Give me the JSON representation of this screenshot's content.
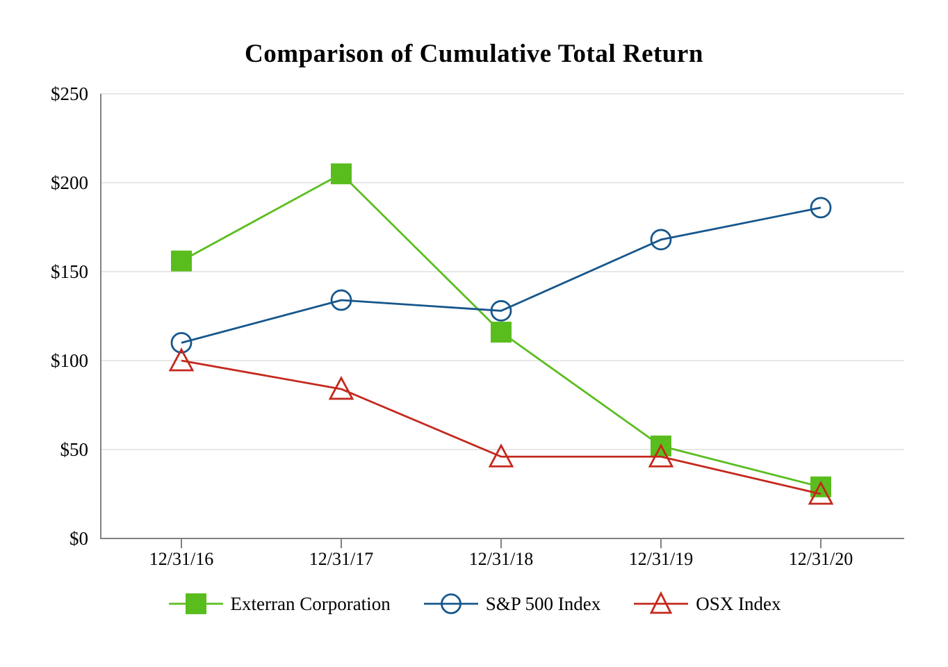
{
  "page": {
    "background": "#ffffff"
  },
  "colors": {
    "axis": "#808080",
    "grid": "#e7e7e7",
    "text": "#000000"
  },
  "chart_data": {
    "type": "line",
    "title": "Comparison of Cumulative Total Return",
    "categories": [
      "12/31/16",
      "12/31/17",
      "12/31/18",
      "12/31/19",
      "12/31/20"
    ],
    "series": [
      {
        "name": "Exterran Corporation",
        "marker": "square",
        "color": "#5abd1e",
        "values": [
          156,
          205,
          116,
          52,
          29
        ]
      },
      {
        "name": "S&P 500 Index",
        "marker": "circle",
        "color": "#16568c",
        "values": [
          110,
          134,
          128,
          168,
          186
        ]
      },
      {
        "name": "OSX Index",
        "marker": "triangle",
        "color": "#c4281c",
        "values": [
          100,
          84,
          46,
          46,
          25
        ]
      }
    ],
    "xlabel": "",
    "ylabel": "",
    "ylim": [
      0,
      250
    ],
    "y_ticks": [
      {
        "label": "$0",
        "value": 0
      },
      {
        "label": "$50",
        "value": 50
      },
      {
        "label": "$100",
        "value": 100
      },
      {
        "label": "$150",
        "value": 150
      },
      {
        "label": "$200",
        "value": 200
      },
      {
        "label": "$250",
        "value": 250
      }
    ],
    "grid": true,
    "legend_position": "bottom"
  }
}
